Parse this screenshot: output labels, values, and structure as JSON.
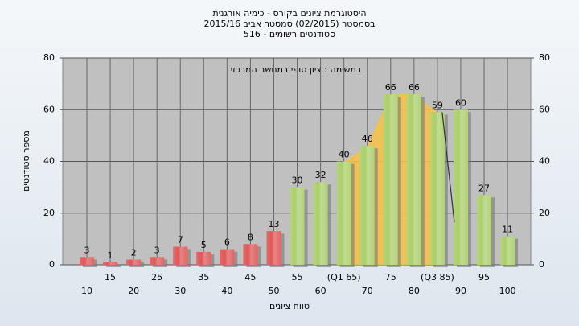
{
  "chart_data": {
    "type": "bar",
    "title": [
      "היסטוגרמת ציונים בקורס - כימיה אורגנית",
      "בסמסטר  (02/2015)  סמסטר אביב 2015/16",
      "סטודנטים רשומים - 516"
    ],
    "annotation": "במשימה : ציון סופי במחשב המרכזי",
    "x_label": "טווח ציונים",
    "y_label": "מספר סטודנטים",
    "categories": [
      "10",
      "15",
      "20",
      "25",
      "30",
      "35",
      "40",
      "45",
      "50",
      "55",
      "60",
      "(Q1 65)",
      "70",
      "75",
      "80",
      "(Q3 85)",
      "90",
      "95",
      "100"
    ],
    "values": [
      3,
      1,
      2,
      3,
      7,
      5,
      6,
      8,
      13,
      30,
      32,
      40,
      46,
      66,
      66,
      59,
      60,
      27,
      11
    ],
    "bar_colors": [
      "#d42020",
      "#d42020",
      "#d42020",
      "#d42020",
      "#d42020",
      "#d42020",
      "#d42020",
      "#d42020",
      "#d42020",
      "#8fbf3a",
      "#8fbf3a",
      "#8fbf3a",
      "#8fbf3a",
      "#8fbf3a",
      "#8fbf3a",
      "#8fbf3a",
      "#8fbf3a",
      "#8fbf3a",
      "#8fbf3a"
    ],
    "quartile_color": "#f5c24a",
    "ylim": [
      0,
      80
    ],
    "yticks": [
      0,
      20,
      40,
      60,
      80
    ],
    "y2lim": [
      0,
      80
    ],
    "y2ticks": [
      0,
      20,
      40,
      60,
      80
    ],
    "grid": true
  }
}
